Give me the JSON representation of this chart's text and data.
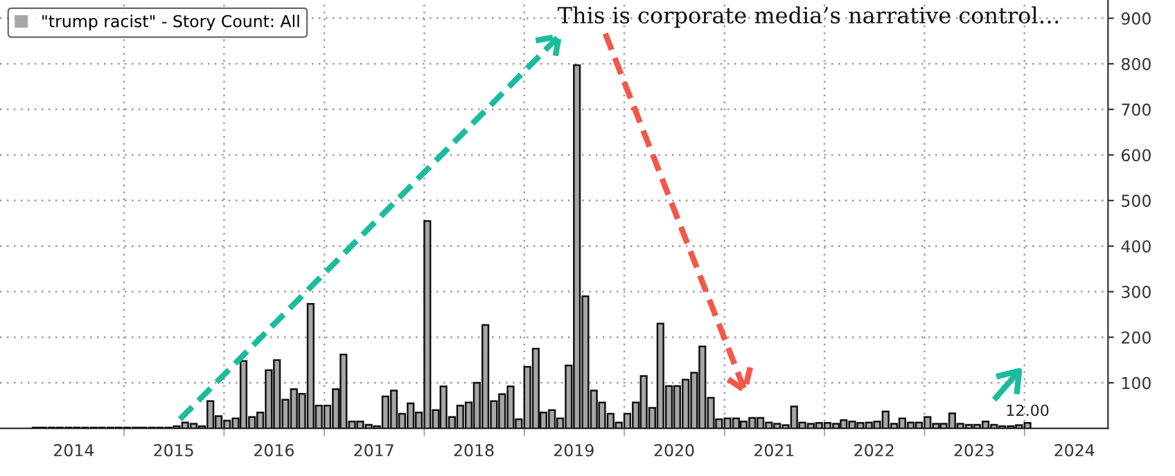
{
  "chart_data": {
    "type": "bar",
    "series": [
      {
        "name": "\"trump racist\" - Story Count: All",
        "color": "#a6a6a6",
        "x": [
          "2014-02",
          "2014-03",
          "2014-04",
          "2014-05",
          "2014-06",
          "2014-07",
          "2014-08",
          "2014-09",
          "2014-10",
          "2014-11",
          "2014-12",
          "2015-01",
          "2015-02",
          "2015-03",
          "2015-04",
          "2015-05",
          "2015-06",
          "2015-07",
          "2015-08",
          "2015-09",
          "2015-10",
          "2015-11",
          "2015-12",
          "2016-01",
          "2016-02",
          "2016-03",
          "2016-04",
          "2016-05",
          "2016-06",
          "2016-07",
          "2016-08",
          "2016-09",
          "2016-10",
          "2016-11",
          "2016-12",
          "2017-01",
          "2017-02",
          "2017-03",
          "2017-04",
          "2017-05",
          "2017-06",
          "2017-07",
          "2017-08",
          "2017-09",
          "2017-10",
          "2017-11",
          "2017-12",
          "2018-01",
          "2018-02",
          "2018-03",
          "2018-04",
          "2018-05",
          "2018-06",
          "2018-07",
          "2018-08",
          "2018-09",
          "2018-10",
          "2018-11",
          "2018-12",
          "2019-01",
          "2019-02",
          "2019-03",
          "2019-04",
          "2019-05",
          "2019-06",
          "2019-07",
          "2019-08",
          "2019-09",
          "2019-10",
          "2019-11",
          "2019-12",
          "2020-01",
          "2020-02",
          "2020-03",
          "2020-04",
          "2020-05",
          "2020-06",
          "2020-07",
          "2020-08",
          "2020-09",
          "2020-10",
          "2020-11",
          "2020-12",
          "2021-01",
          "2021-02",
          "2021-03",
          "2021-04",
          "2021-05",
          "2021-06",
          "2021-07",
          "2021-08",
          "2021-09",
          "2021-10",
          "2021-11",
          "2021-12",
          "2022-01",
          "2022-02",
          "2022-03",
          "2022-04",
          "2022-05",
          "2022-06",
          "2022-07",
          "2022-08",
          "2022-09",
          "2022-10",
          "2022-11",
          "2022-12",
          "2023-01",
          "2023-02",
          "2023-03",
          "2023-04",
          "2023-05",
          "2023-06",
          "2023-07",
          "2023-08",
          "2023-09",
          "2023-10",
          "2023-11",
          "2023-12",
          "2024-01"
        ],
        "values": [
          2,
          2,
          2,
          2,
          2,
          2,
          2,
          2,
          2,
          2,
          2,
          2,
          2,
          2,
          2,
          2,
          2,
          5,
          13,
          10,
          5,
          60,
          27,
          17,
          22,
          148,
          25,
          35,
          128,
          150,
          63,
          86,
          76,
          273,
          50,
          50,
          86,
          162,
          15,
          15,
          8,
          5,
          70,
          83,
          32,
          55,
          35,
          455,
          40,
          92,
          25,
          50,
          57,
          100,
          227,
          60,
          75,
          92,
          20,
          135,
          175,
          35,
          40,
          22,
          138,
          797,
          290,
          83,
          57,
          32,
          13,
          32,
          57,
          115,
          45,
          230,
          93,
          93,
          107,
          122,
          180,
          67,
          20,
          22,
          22,
          15,
          23,
          23,
          13,
          10,
          7,
          48,
          13,
          10,
          12,
          12,
          10,
          18,
          15,
          12,
          13,
          15,
          37,
          10,
          22,
          13,
          13,
          25,
          10,
          10,
          33,
          10,
          8,
          8,
          15,
          8,
          5,
          5,
          7,
          12
        ],
        "value_labels": [
          null,
          null,
          null,
          null,
          null,
          null,
          null,
          null,
          null,
          null,
          null,
          null,
          null,
          null,
          null,
          null,
          null,
          null,
          null,
          null,
          null,
          null,
          null,
          null,
          null,
          null,
          null,
          null,
          null,
          null,
          null,
          null,
          null,
          null,
          null,
          null,
          null,
          null,
          null,
          null,
          null,
          null,
          null,
          null,
          null,
          null,
          null,
          null,
          null,
          null,
          null,
          null,
          null,
          null,
          null,
          null,
          null,
          null,
          null,
          null,
          null,
          null,
          null,
          null,
          null,
          null,
          null,
          null,
          null,
          null,
          null,
          null,
          null,
          null,
          null,
          null,
          null,
          null,
          null,
          null,
          null,
          null,
          null,
          null,
          null,
          null,
          null,
          null,
          null,
          null,
          null,
          null,
          null,
          null,
          null,
          null,
          null,
          null,
          null,
          null,
          null,
          null,
          null,
          null,
          null,
          null,
          null,
          null,
          null,
          null,
          null,
          null,
          null,
          null,
          null,
          null,
          null,
          null,
          null,
          "12.00"
        ]
      }
    ],
    "xlim": [
      "2013-10-05",
      "2024-11-01"
    ],
    "xticks": [
      {
        "value": "2014-07-01",
        "label": "2014"
      },
      {
        "value": "2015-01-01",
        "label": null
      },
      {
        "value": "2015-07-01",
        "label": "2015"
      },
      {
        "value": "2016-01-01",
        "label": null
      },
      {
        "value": "2016-07-01",
        "label": "2016"
      },
      {
        "value": "2017-01-01",
        "label": null
      },
      {
        "value": "2017-07-01",
        "label": "2017"
      },
      {
        "value": "2018-01-01",
        "label": null
      },
      {
        "value": "2018-07-01",
        "label": "2018"
      },
      {
        "value": "2019-01-01",
        "label": null
      },
      {
        "value": "2019-07-01",
        "label": "2019"
      },
      {
        "value": "2020-01-01",
        "label": null
      },
      {
        "value": "2020-07-01",
        "label": "2020"
      },
      {
        "value": "2021-01-01",
        "label": null
      },
      {
        "value": "2021-07-01",
        "label": "2021"
      },
      {
        "value": "2022-01-01",
        "label": null
      },
      {
        "value": "2022-07-01",
        "label": "2022"
      },
      {
        "value": "2023-01-01",
        "label": null
      },
      {
        "value": "2023-07-01",
        "label": "2023"
      },
      {
        "value": "2024-01-01",
        "label": null
      },
      {
        "value": "2024-07-01",
        "label": "2024"
      }
    ],
    "ylim": [
      0,
      940
    ],
    "yticks": [
      100,
      200,
      300,
      400,
      500,
      600,
      700,
      800,
      900
    ],
    "grid": true,
    "legend": "top left",
    "annotations": [
      "This is corporate media’s narrative control…"
    ]
  }
}
